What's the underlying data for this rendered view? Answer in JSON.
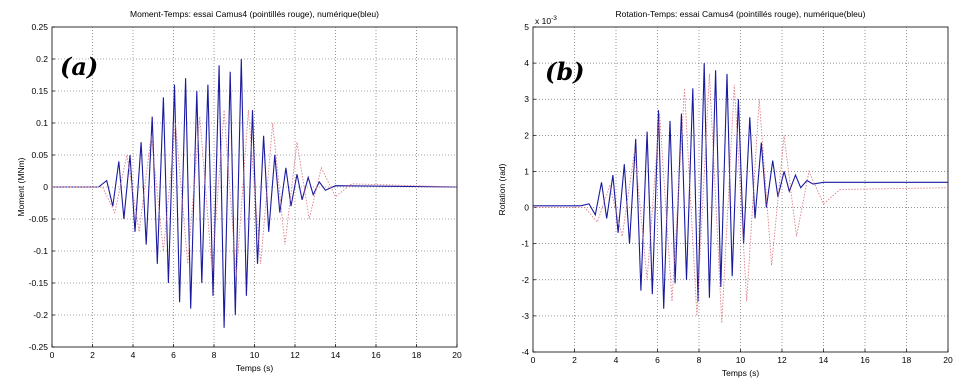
{
  "chart_data": [
    {
      "type": "line",
      "title": "Moment-Temps: essai Camus4 (pointillés rouge), numérique(bleu)",
      "panel_label": "(a)",
      "xlabel": "Temps (s)",
      "ylabel": "Moment (MNm)",
      "xlim": [
        0,
        20
      ],
      "ylim": [
        -0.25,
        0.25
      ],
      "x_ticks": [
        "0",
        "2",
        "4",
        "6",
        "8",
        "10",
        "12",
        "14",
        "16",
        "18",
        "20"
      ],
      "y_ticks": [
        "-0.25",
        "-0.2",
        "-0.15",
        "-0.1",
        "-0.05",
        "0",
        "0.05",
        "0.1",
        "0.15",
        "0.2",
        "0.25"
      ],
      "y_tick_values": [
        -0.25,
        -0.2,
        -0.15,
        -0.1,
        -0.05,
        0,
        0.05,
        0.1,
        0.15,
        0.2,
        0.25
      ],
      "grid": true,
      "series": [
        {
          "style": "numeric",
          "color": "#1a1aa0",
          "x": [
            0,
            2.3,
            2.7,
            3.0,
            3.3,
            3.55,
            3.85,
            4.1,
            4.4,
            4.65,
            4.95,
            5.2,
            5.5,
            5.75,
            6.05,
            6.3,
            6.6,
            6.85,
            7.15,
            7.4,
            7.7,
            7.95,
            8.25,
            8.5,
            8.8,
            9.05,
            9.35,
            9.6,
            9.9,
            10.15,
            10.45,
            10.7,
            11.0,
            11.25,
            11.55,
            11.8,
            12.1,
            12.35,
            12.65,
            12.9,
            13.2,
            13.5,
            14.0,
            20
          ],
          "y": [
            0,
            0,
            0.01,
            -0.03,
            0.04,
            -0.05,
            0.05,
            -0.07,
            0.07,
            -0.09,
            0.11,
            -0.12,
            0.14,
            -0.15,
            0.16,
            -0.18,
            0.17,
            -0.19,
            0.15,
            -0.15,
            0.16,
            -0.17,
            0.19,
            -0.22,
            0.18,
            -0.2,
            0.2,
            -0.17,
            0.12,
            -0.12,
            0.08,
            -0.07,
            0.05,
            -0.04,
            0.03,
            -0.03,
            0.02,
            -0.02,
            0.015,
            -0.012,
            0.008,
            -0.005,
            0.002,
            0
          ]
        },
        {
          "style": "test",
          "color": "#d8707a",
          "x": [
            0,
            2.5,
            3.1,
            3.7,
            4.3,
            4.9,
            5.5,
            6.1,
            6.7,
            7.3,
            7.9,
            8.5,
            9.1,
            9.7,
            10.3,
            10.9,
            11.5,
            12.1,
            12.7,
            13.3,
            14.0,
            14.8,
            20
          ],
          "y": [
            0,
            0,
            -0.04,
            0.05,
            -0.07,
            0.08,
            -0.1,
            0.1,
            -0.12,
            0.11,
            -0.13,
            0.12,
            -0.14,
            0.12,
            -0.12,
            0.1,
            -0.09,
            0.07,
            -0.05,
            0.03,
            -0.015,
            0.005,
            0
          ]
        }
      ]
    },
    {
      "type": "line",
      "title": "Rotation-Temps: essai Camus4 (pointillés rouge), numérique(bleu)",
      "panel_label": "(b)",
      "xlabel": "Temps (s)",
      "ylabel": "Rotation (rad)",
      "y_multiplier": "x 10",
      "y_multiplier_exp": "-3",
      "xlim": [
        0,
        20
      ],
      "ylim": [
        -4,
        5
      ],
      "x_ticks": [
        "0",
        "2",
        "4",
        "6",
        "8",
        "10",
        "12",
        "14",
        "16",
        "18",
        "20"
      ],
      "y_ticks": [
        "-4",
        "-3",
        "-2",
        "-1",
        "0",
        "1",
        "2",
        "3",
        "4",
        "5"
      ],
      "y_tick_values": [
        -4,
        -3,
        -2,
        -1,
        0,
        1,
        2,
        3,
        4,
        5
      ],
      "grid": true,
      "series": [
        {
          "style": "numeric",
          "color": "#1a1aa0",
          "x": [
            0,
            2.3,
            2.7,
            3.0,
            3.3,
            3.55,
            3.85,
            4.1,
            4.4,
            4.65,
            4.95,
            5.2,
            5.5,
            5.75,
            6.05,
            6.3,
            6.6,
            6.85,
            7.15,
            7.4,
            7.7,
            7.95,
            8.25,
            8.5,
            8.8,
            9.05,
            9.35,
            9.6,
            9.9,
            10.15,
            10.45,
            10.7,
            11.0,
            11.25,
            11.55,
            11.8,
            12.1,
            12.35,
            12.65,
            12.9,
            13.2,
            13.5,
            14.0,
            20
          ],
          "y": [
            0.05,
            0.05,
            0.1,
            -0.2,
            0.7,
            -0.3,
            0.9,
            -0.7,
            1.2,
            -1.0,
            1.9,
            -2.3,
            2.1,
            -2.4,
            2.7,
            -2.8,
            2.4,
            -2.1,
            2.6,
            -2.0,
            3.3,
            -2.6,
            4.0,
            -2.5,
            3.8,
            -2.2,
            3.7,
            -1.9,
            3.0,
            -1.0,
            2.5,
            -0.3,
            1.8,
            0.0,
            1.3,
            0.3,
            1.0,
            0.45,
            0.9,
            0.55,
            0.75,
            0.65,
            0.7,
            0.7
          ]
        },
        {
          "style": "test",
          "color": "#d8707a",
          "x": [
            0,
            2.5,
            3.1,
            3.7,
            4.3,
            4.9,
            5.5,
            6.1,
            6.7,
            7.3,
            7.9,
            8.5,
            9.1,
            9.7,
            10.3,
            10.9,
            11.5,
            12.1,
            12.7,
            13.3,
            14.0,
            14.8,
            20
          ],
          "y": [
            0,
            0,
            -0.4,
            0.6,
            -0.8,
            1.6,
            -2.0,
            2.6,
            -2.6,
            3.3,
            -3.0,
            3.7,
            -3.2,
            3.4,
            -2.6,
            3.0,
            -1.6,
            2.0,
            -0.8,
            1.0,
            0.1,
            0.5,
            0.55
          ]
        }
      ]
    }
  ]
}
